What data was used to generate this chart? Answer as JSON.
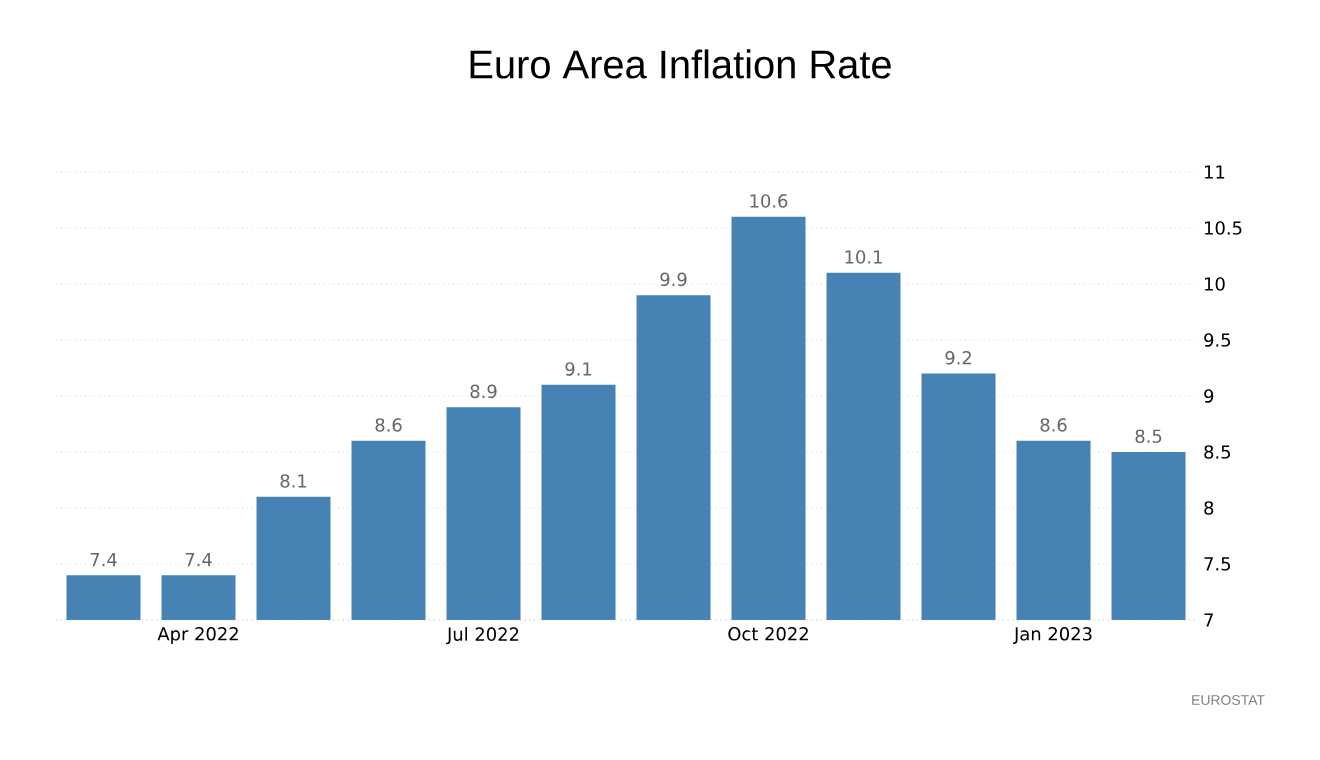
{
  "chart_data": {
    "type": "bar",
    "title": "Euro Area Inflation Rate",
    "categories": [
      null,
      "Apr 2022",
      null,
      null,
      "Jul 2022",
      null,
      null,
      "Oct 2022",
      null,
      null,
      "Jan 2023",
      null
    ],
    "values": [
      7.4,
      7.4,
      8.1,
      8.6,
      8.9,
      9.1,
      9.9,
      10.6,
      10.1,
      9.2,
      8.6,
      8.5
    ],
    "color": "#4682b4",
    "ylim": [
      7,
      11
    ],
    "yticks": [
      7,
      7.5,
      8,
      8.5,
      9,
      9.5,
      10,
      10.5,
      11
    ],
    "grid": "y",
    "data_labels": true,
    "annotations": [
      "EUROSTAT"
    ]
  }
}
